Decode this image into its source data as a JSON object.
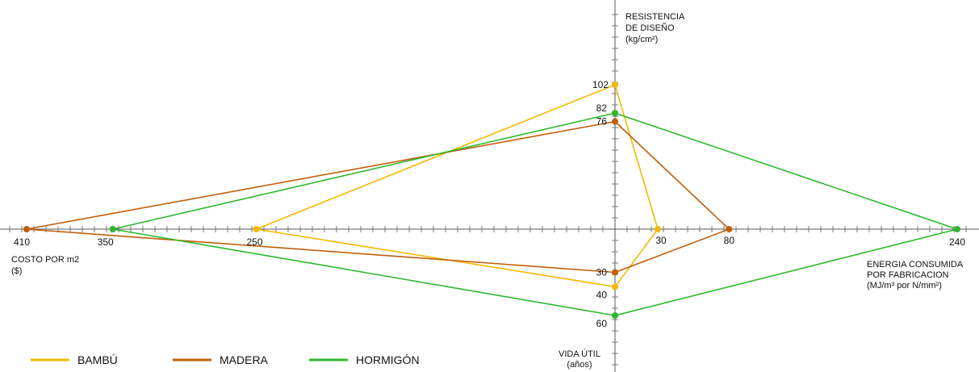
{
  "chart_data": {
    "type": "radar",
    "axes": {
      "costo": {
        "label_lines": [
          "COSTO POR m2",
          "($)"
        ],
        "max": 410,
        "direction": "left",
        "tick_labels": [
          "410",
          "350",
          "250"
        ]
      },
      "energia": {
        "label_lines": [
          "ENERGIA CONSUMIDA",
          "POR FABRICACION",
          "(MJ/m³ por N/mm²)"
        ],
        "max": 240,
        "direction": "right",
        "tick_labels": [
          "30",
          "80",
          "240"
        ]
      },
      "resistencia": {
        "label_lines": [
          "RESISTENCIA",
          "DE DISEÑO",
          "(kg/cm²)"
        ],
        "max": 102,
        "direction": "up",
        "tick_labels": [
          "102",
          "82",
          "76"
        ]
      },
      "vida": {
        "label_lines": [
          "VIDA ÚTIL",
          "(años)"
        ],
        "max": 60,
        "direction": "down",
        "tick_labels": [
          "30",
          "40",
          "60"
        ]
      }
    },
    "series": [
      {
        "name": "BAMBÚ",
        "color": "#F5B800",
        "values": {
          "costo": 250,
          "energia": 30,
          "resistencia": 102,
          "vida": 40
        }
      },
      {
        "name": "MADERA",
        "color": "#C15E0A",
        "values": {
          "costo": 410,
          "energia": 80,
          "resistencia": 76,
          "vida": 30
        }
      },
      {
        "name": "HORMIGÓN",
        "color": "#2DB82D",
        "values": {
          "costo": 350,
          "energia": 240,
          "resistencia": 82,
          "vida": 60
        }
      }
    ],
    "legend_position": "bottom-left",
    "grid": false
  }
}
